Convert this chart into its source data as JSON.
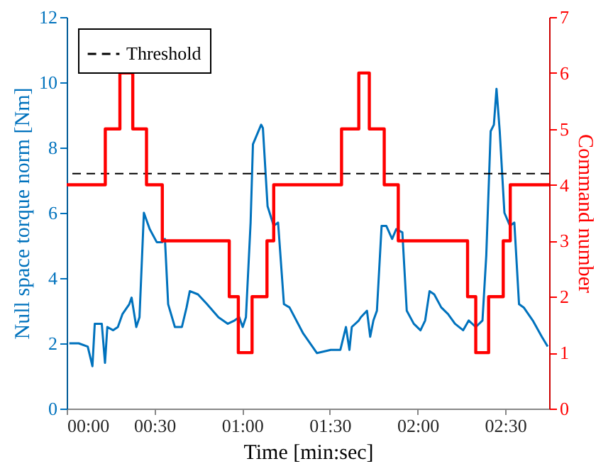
{
  "chart_data": {
    "type": "line",
    "xlabel": "Time [min:sec]",
    "ylabel": "Null space torque norm [Nm]",
    "y2label": "Command number",
    "xlim": [
      0,
      165
    ],
    "xticks": [
      {
        "value": 0,
        "label": "00:00"
      },
      {
        "value": 30,
        "label": "00:30"
      },
      {
        "value": 60,
        "label": "01:00"
      },
      {
        "value": 90,
        "label": "01:30"
      },
      {
        "value": 120,
        "label": "02:00"
      },
      {
        "value": 150,
        "label": "02:30"
      }
    ],
    "ylim": [
      0,
      12
    ],
    "yticks": [
      0,
      2,
      4,
      6,
      8,
      10,
      12
    ],
    "y2lim": [
      0,
      7
    ],
    "y2ticks": [
      0,
      1,
      2,
      3,
      4,
      5,
      6,
      7
    ],
    "legend": "top left",
    "ref_lines": [
      {
        "axis": "y",
        "value": 7.2,
        "label": "Threshold",
        "color": "#000000",
        "line_style": "dashed"
      }
    ],
    "series": [
      {
        "color": "#0072bd",
        "x": [
          0.9,
          4.1,
          7.2,
          8.8,
          9.6,
          12,
          13.1,
          13.9,
          15.9,
          17.5,
          19.1,
          21.4,
          22.2,
          23.8,
          24.9,
          26.4,
          28.4,
          30.8,
          32.7,
          33.6,
          34.7,
          37,
          39.4,
          41,
          42.1,
          44.9,
          48,
          51.9,
          55.1,
          57.4,
          59,
          60.2,
          61.3,
          62.9,
          63.7,
          66.5,
          67.1,
          68.7,
          70.8,
          72.3,
          74.3,
          76.2,
          80.9,
          85.6,
          90.3,
          93.6,
          95.5,
          96.7,
          97.5,
          99.9,
          100.6,
          102.7,
          103.8,
          104.9,
          106.1,
          107.7,
          109.3,
          111.3,
          112.7,
          114.8,
          116.3,
          118.7,
          121,
          122.6,
          124.1,
          125.7,
          128.1,
          130.4,
          132.8,
          135.6,
          137.5,
          139.9,
          142.2,
          143.5,
          145,
          146.1,
          147,
          148.1,
          149.7,
          151.6,
          153.1,
          154.7,
          156.3,
          159.4,
          162.5,
          164.5
        ],
        "values": [
          2.0,
          2.0,
          1.9,
          1.3,
          2.6,
          2.6,
          1.4,
          2.5,
          2.4,
          2.5,
          2.9,
          3.2,
          3.4,
          2.5,
          2.8,
          6.0,
          5.5,
          5.1,
          5.1,
          5.2,
          3.2,
          2.5,
          2.5,
          3.1,
          3.6,
          3.5,
          3.2,
          2.8,
          2.6,
          2.7,
          2.8,
          2.5,
          2.8,
          5.7,
          8.1,
          8.7,
          8.6,
          6.2,
          5.6,
          5.7,
          3.2,
          3.1,
          2.3,
          1.7,
          1.8,
          1.8,
          2.5,
          1.8,
          2.5,
          2.7,
          2.8,
          3.0,
          2.2,
          2.7,
          3.0,
          5.6,
          5.6,
          5.2,
          5.5,
          5.4,
          3.0,
          2.6,
          2.4,
          2.7,
          3.6,
          3.5,
          3.1,
          2.9,
          2.6,
          2.4,
          2.7,
          2.5,
          2.7,
          4.7,
          8.5,
          8.7,
          9.8,
          8.5,
          6.0,
          5.6,
          5.7,
          3.2,
          3.1,
          2.7,
          2.2,
          1.9
        ]
      },
      {
        "type": "step",
        "axis": "y2",
        "color": "#ff0000",
        "x": [
          0,
          13.2,
          18.2,
          22.6,
          27.3,
          32.7,
          55.6,
          58.7,
          63.4,
          68.5,
          70.8,
          94.0,
          99.9,
          103.5,
          108.6,
          113.4,
          137.1,
          139.9,
          144.3,
          149.3,
          151.7,
          165
        ],
        "values": [
          4,
          5,
          6,
          5,
          4,
          3,
          2,
          1,
          2,
          3,
          4,
          5,
          6,
          5,
          4,
          3,
          2,
          1,
          2,
          3,
          4,
          4
        ]
      }
    ]
  }
}
